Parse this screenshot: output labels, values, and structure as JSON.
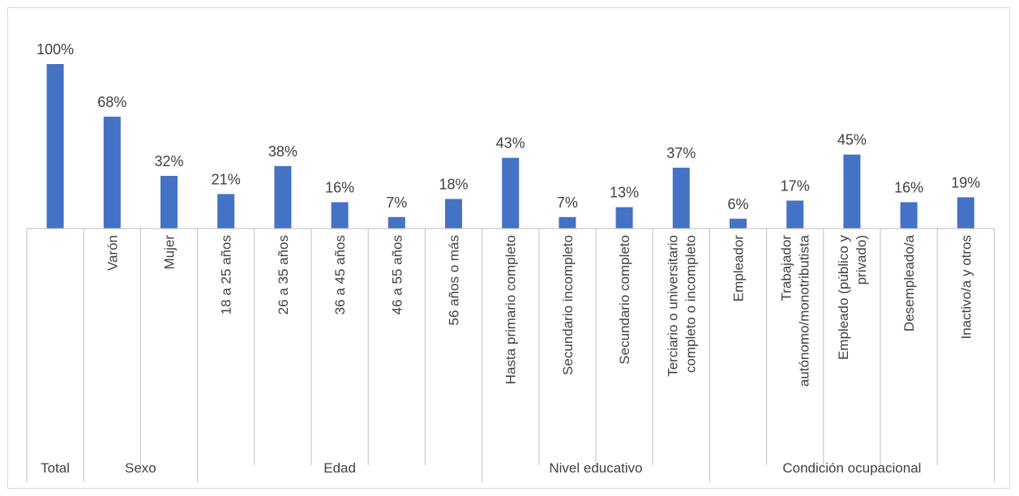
{
  "chart_data": {
    "type": "bar",
    "color": "#4472C4",
    "ylim": [
      0,
      100
    ],
    "unit": "%",
    "groups": [
      {
        "name": "Total",
        "categories": [
          ""
        ]
      },
      {
        "name": "Sexo",
        "categories": [
          "Varón",
          "Mujer"
        ]
      },
      {
        "name": "Edad",
        "categories": [
          "18 a 25 años",
          "26 a 35 años",
          "36 a 45 años",
          "46 a 55 años",
          "56 años o más"
        ]
      },
      {
        "name": "Nivel educativo",
        "categories": [
          "Hasta primario completo",
          "Secundario incompleto",
          "Secundario completo",
          [
            "Terciario o universitario",
            "completo o incompleto"
          ]
        ]
      },
      {
        "name": "Condición ocupacional",
        "categories": [
          "Empleador",
          [
            "Trabajador",
            "autónomo/monotributista"
          ],
          [
            "Empleado (público y",
            "privado)"
          ],
          "Desempleado/a",
          "Inactivo/a y otros"
        ]
      }
    ],
    "values": [
      100,
      68,
      32,
      21,
      38,
      16,
      7,
      18,
      43,
      7,
      13,
      37,
      6,
      17,
      45,
      16,
      19
    ],
    "data_labels": [
      "100%",
      "68%",
      "32%",
      "21%",
      "38%",
      "16%",
      "7%",
      "18%",
      "43%",
      "7%",
      "13%",
      "37%",
      "6%",
      "17%",
      "45%",
      "16%",
      "19%"
    ]
  }
}
